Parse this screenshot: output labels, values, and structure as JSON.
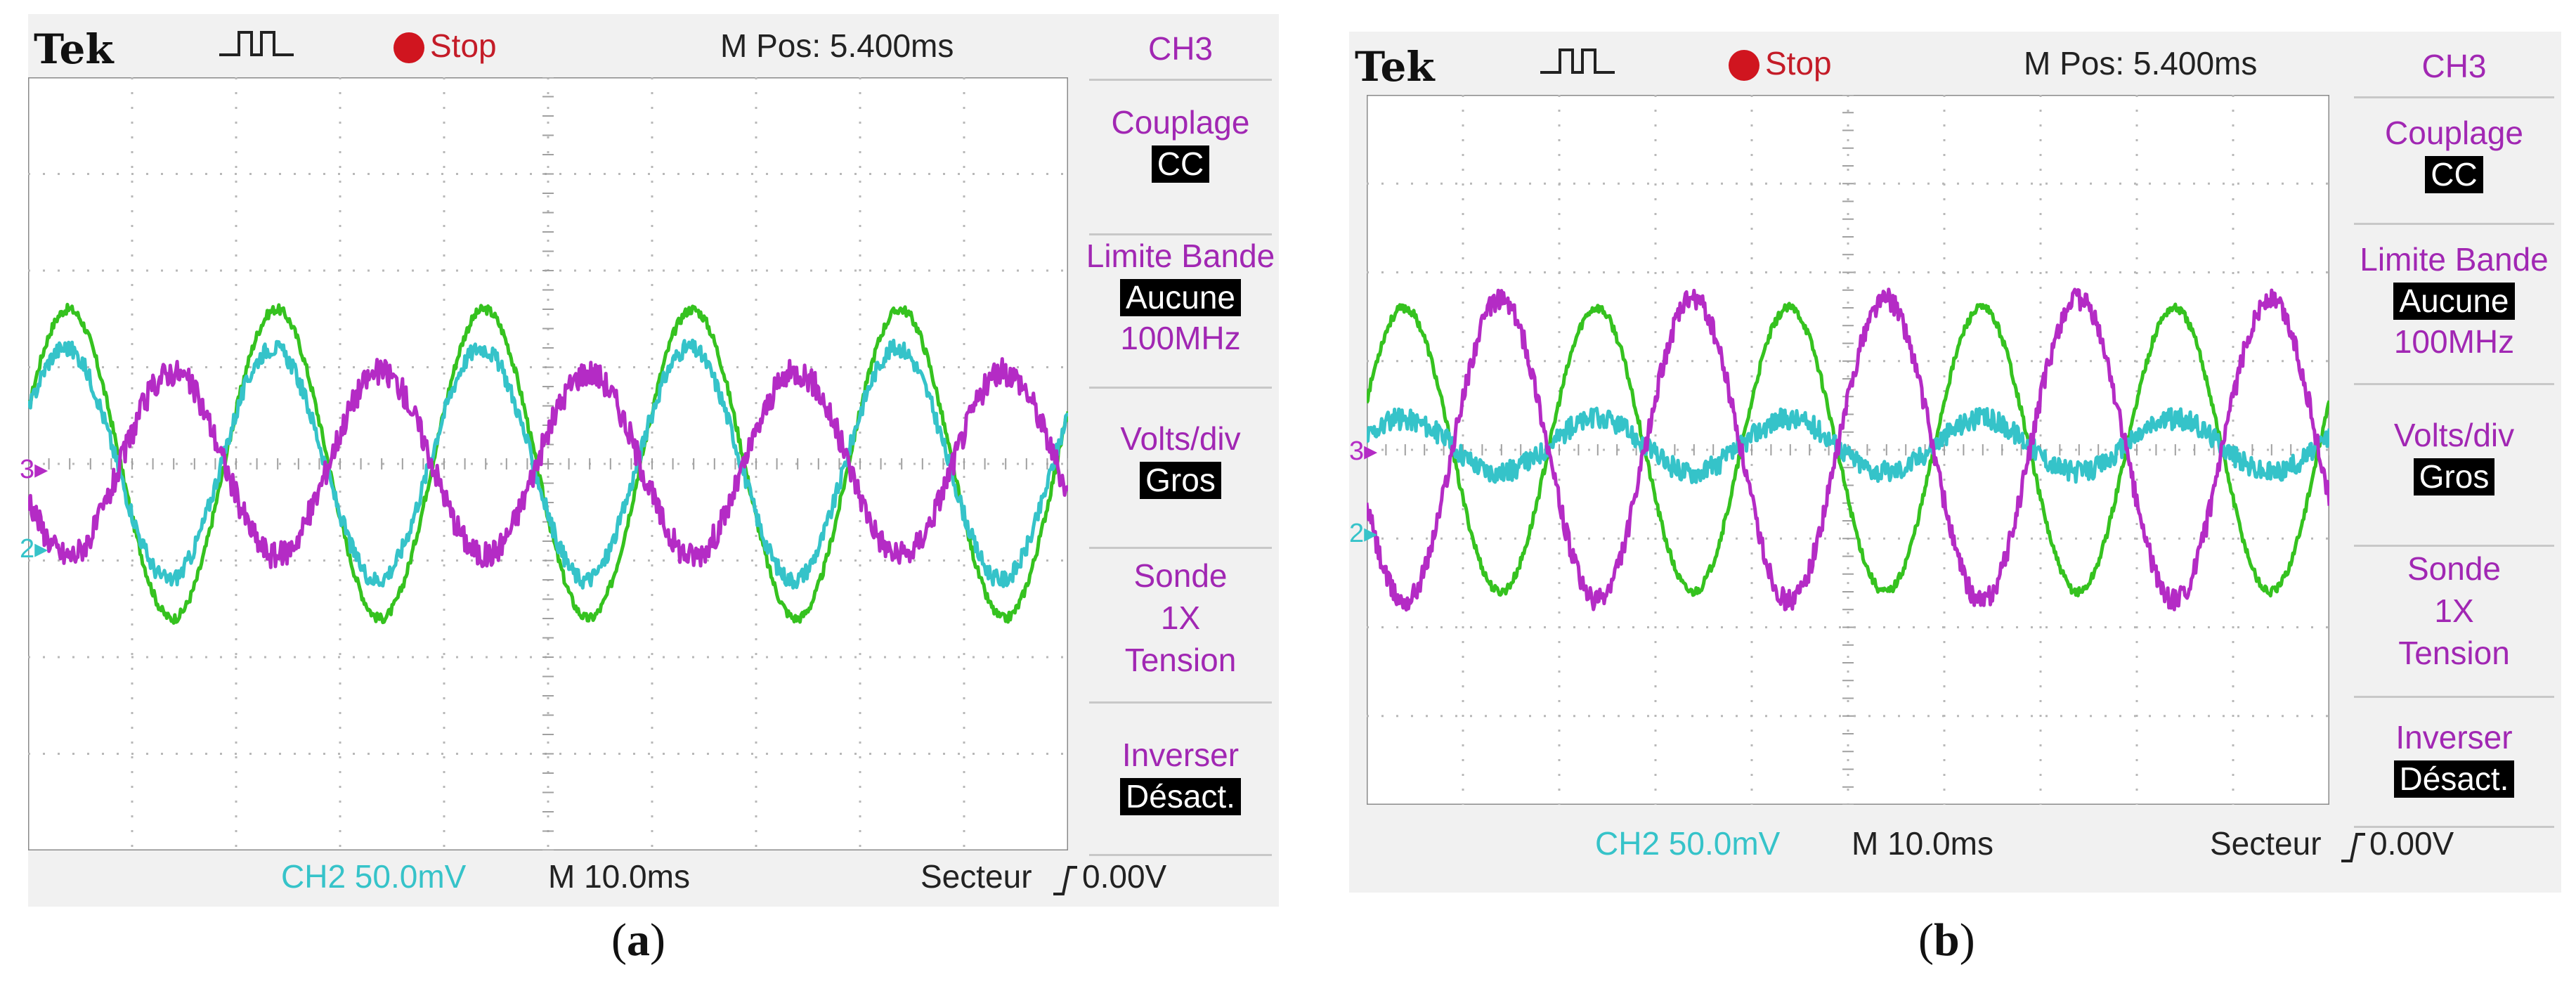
{
  "chart_data": [
    {
      "type": "line",
      "panel": "a",
      "caption": "a",
      "header": {
        "brand": "Tek",
        "state": "Stop",
        "position": "M Pos: 5.400ms"
      },
      "footer": {
        "channel_scale": "CH2  50.0mV",
        "time_scale": "M 10.0ms",
        "trigger": "Secteur",
        "trigger_level": "0.00V"
      },
      "menu": {
        "title": "CH3",
        "coupling_label": "Couplage",
        "coupling_value": "CC",
        "bandwidth_label": "Limite Bande",
        "bandwidth_value": "Aucune",
        "bandwidth_sub": "100MHz",
        "voltsdiv_label": "Volts/div",
        "voltsdiv_value": "Gros",
        "probe_label": "Sonde",
        "probe_sub1": "1X",
        "probe_sub2": "Tension",
        "invert_label": "Inverser",
        "invert_value": "Désact."
      },
      "markers": {
        "ch3": "3",
        "ch2": "2"
      },
      "grid": {
        "divisions_x": 10,
        "divisions_y": 8
      },
      "xlim_div": [
        0,
        10
      ],
      "ylim_div": [
        -4,
        4
      ],
      "series": [
        {
          "color": "#35c21f",
          "amplitude_div": 1.6,
          "offset_div": 0.0,
          "period_div": 2.0,
          "phase_rad": 0.35,
          "noise": 0.05
        },
        {
          "color": "#35c3c9",
          "amplitude_div": 1.2,
          "offset_div": 0.0,
          "period_div": 2.0,
          "phase_rad": 0.45,
          "noise": 0.09
        },
        {
          "color": "#b42bc5",
          "amplitude_div": 0.95,
          "offset_div": 0.0,
          "period_div": 2.0,
          "phase_rad": 3.49,
          "noise": 0.14
        }
      ]
    },
    {
      "type": "line",
      "panel": "b",
      "caption": "b",
      "header": {
        "brand": "Tek",
        "state": "Stop",
        "position": "M Pos: 5.400ms"
      },
      "footer": {
        "channel_scale": "CH2  50.0mV",
        "time_scale": "M 10.0ms",
        "trigger": "Secteur",
        "trigger_level": "0.00V"
      },
      "menu": {
        "title": "CH3",
        "coupling_label": "Couplage",
        "coupling_value": "CC",
        "bandwidth_label": "Limite Bande",
        "bandwidth_value": "Aucune",
        "bandwidth_sub": "100MHz",
        "voltsdiv_label": "Volts/div",
        "voltsdiv_value": "Gros",
        "probe_label": "Sonde",
        "probe_sub1": "1X",
        "probe_sub2": "Tension",
        "invert_label": "Inverser",
        "invert_value": "Désact."
      },
      "markers": {
        "ch3": "3",
        "ch2": "2"
      },
      "grid": {
        "divisions_x": 10,
        "divisions_y": 8
      },
      "xlim_div": [
        0,
        10
      ],
      "ylim_div": [
        -4,
        4
      ],
      "series": [
        {
          "color": "#35c21f",
          "amplitude_div": 1.6,
          "offset_div": 0.0,
          "period_div": 2.0,
          "phase_rad": 0.35,
          "noise": 0.05
        },
        {
          "color": "#35c3c9",
          "amplitude_div": 0.3,
          "offset_div": 0.05,
          "period_div": 2.0,
          "phase_rad": 0.35,
          "noise": 0.12
        },
        {
          "color": "#b42bc5",
          "amplitude_div": 1.7,
          "offset_div": 0.0,
          "period_div": 2.0,
          "phase_rad": 3.49,
          "noise": 0.12
        }
      ]
    }
  ]
}
